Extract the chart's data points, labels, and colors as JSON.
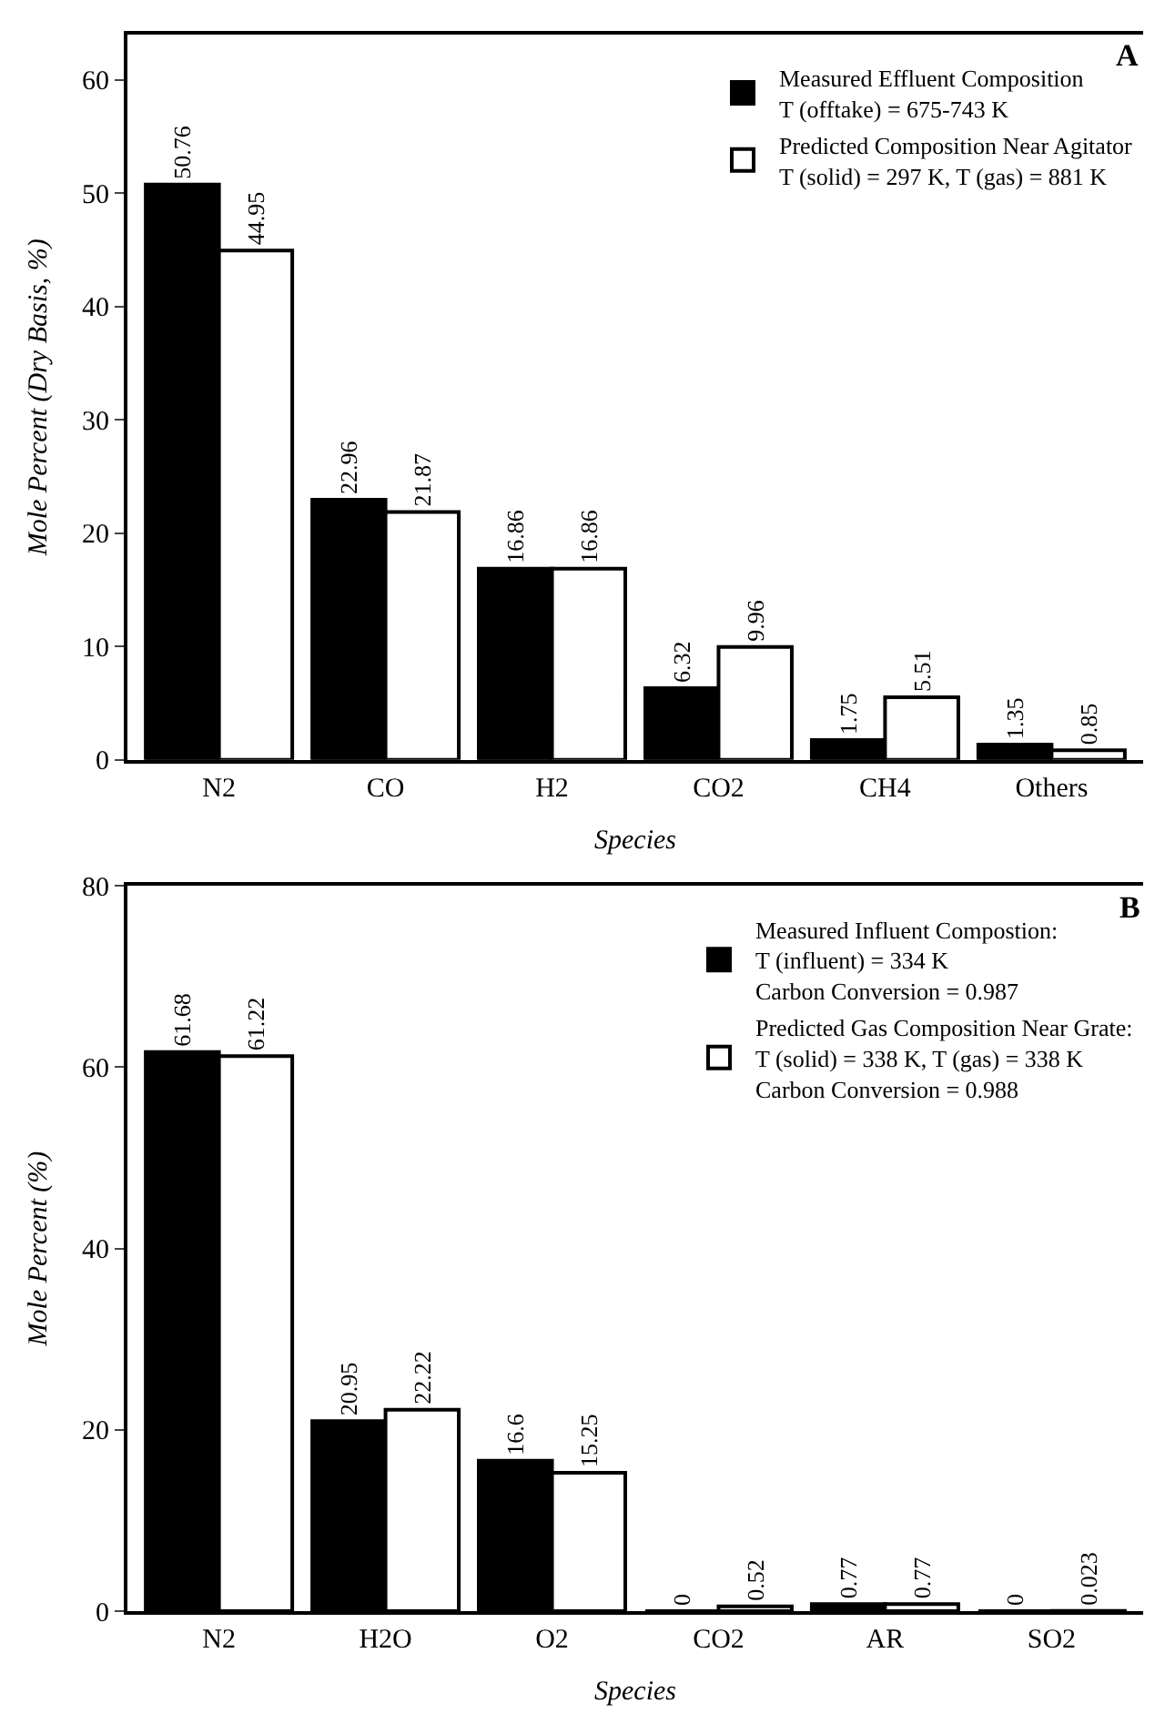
{
  "chart_data": [
    {
      "type": "bar",
      "xlabel": "Species",
      "ylabel": "Mole Percent (Dry Basis, %)",
      "categories": [
        "N2",
        "CO",
        "H2",
        "CO2",
        "CH4",
        "Others"
      ],
      "series": [
        {
          "name": "Measured Effluent Composition\nT (offtake) = 675-743 K",
          "color": "#000000",
          "values": [
            50.76,
            22.96,
            16.86,
            6.32,
            1.75,
            1.35
          ]
        },
        {
          "name": "Predicted Composition Near Agitator\nT (solid) = 297 K, T (gas) = 881 K",
          "color": "#ffffff",
          "values": [
            44.95,
            21.87,
            16.86,
            9.96,
            5.51,
            0.85
          ]
        }
      ],
      "ylim": [
        0,
        64
      ],
      "yticks": [
        0,
        10,
        20,
        30,
        40,
        50,
        60
      ],
      "data_labels": true,
      "legend": "top right",
      "annotations": [
        "A"
      ]
    },
    {
      "type": "bar",
      "xlabel": "Species",
      "ylabel": "Mole Percent (%)",
      "categories": [
        "N2",
        "H2O",
        "O2",
        "CO2",
        "AR",
        "SO2"
      ],
      "series": [
        {
          "name": "Measured Influent Compostion:\nT (influent) = 334 K\nCarbon Conversion = 0.987",
          "color": "#000000",
          "values": [
            61.68,
            20.95,
            16.6,
            0,
            0.77,
            0
          ]
        },
        {
          "name": "Predicted Gas Composition Near Grate:\nT (solid) = 338 K, T (gas) = 338 K\nCarbon Conversion = 0.988",
          "color": "#ffffff",
          "values": [
            61.22,
            22.22,
            15.25,
            0.52,
            0.77,
            0.023
          ]
        }
      ],
      "ylim": [
        0,
        80
      ],
      "yticks": [
        0,
        20,
        40,
        60,
        80
      ],
      "data_labels": true,
      "legend": "top right",
      "annotations": [
        "B"
      ]
    }
  ]
}
